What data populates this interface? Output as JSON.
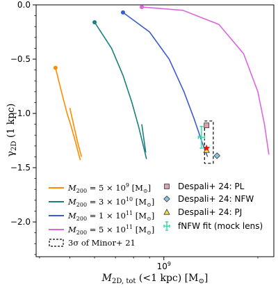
{
  "chart_data": {
    "type": "line",
    "title": "",
    "xlabel": "M_2D,tot (<1 kpc) [M_⊙]",
    "ylabel": "γ_2D (1 kpc)",
    "x_scale": "log",
    "xlim": [
      390000000,
      2250000000
    ],
    "ylim": [
      -2.32,
      0.0
    ],
    "x_ticks": [
      {
        "value": 1000000000,
        "label": "10^9"
      }
    ],
    "y_ticks": [
      {
        "value": 0.0,
        "label": "0.0"
      },
      {
        "value": -0.5,
        "label": "−0.5"
      },
      {
        "value": -1.0,
        "label": "−1.0"
      },
      {
        "value": -1.5,
        "label": "−1.5"
      },
      {
        "value": -2.0,
        "label": "−2.0"
      }
    ],
    "grid": false,
    "legend_placement": "lower-left and lower-right",
    "series": [
      {
        "name": "M_200 = 5×10^9 [M_⊙]",
        "legend_main": "M200 = 5 × 10",
        "legend_exp": "9",
        "legend_unit": "[M☉]",
        "color": "#ff8c00",
        "start_marker": {
          "x": 450000000,
          "y": -0.58
        },
        "x": [
          450000000,
          470000000,
          490000000,
          505000000,
          520000000,
          540000000
        ],
        "y": [
          -0.58,
          -0.8,
          -1.0,
          -1.12,
          -1.25,
          -1.43
        ],
        "extra_segment": {
          "x": [
            500000000,
            528000000,
            545000000
          ],
          "y": [
            -0.95,
            -1.25,
            -1.4
          ]
        }
      },
      {
        "name": "M_200 = 3×10^10 [M_⊙]",
        "legend_main": "M200 = 3 × 10",
        "legend_exp": "10",
        "legend_unit": "[M☉]",
        "color": "#1b7f7f",
        "start_marker": {
          "x": 600000000,
          "y": -0.16
        },
        "x": [
          600000000,
          680000000,
          740000000,
          790000000,
          830000000,
          860000000,
          880000000
        ],
        "y": [
          -0.16,
          -0.4,
          -0.65,
          -0.9,
          -1.12,
          -1.3,
          -1.42
        ],
        "extra_segment": {
          "x": [
            850000000,
            875000000
          ],
          "y": [
            -1.1,
            -1.36
          ]
        }
      },
      {
        "name": "M_200 = 1×10^11 [M_⊙]",
        "legend_main": "M200 = 1 × 10",
        "legend_exp": "11",
        "legend_unit": "[M☉]",
        "color": "#3b5ccc",
        "start_marker": {
          "x": 740000000,
          "y": -0.07
        },
        "x": [
          740000000,
          900000000,
          1040000000,
          1160000000,
          1250000000,
          1320000000,
          1380000000
        ],
        "y": [
          -0.07,
          -0.25,
          -0.5,
          -0.8,
          -1.05,
          -1.25,
          -1.4
        ],
        "extra_segment": null
      },
      {
        "name": "M_200 = 5×10^11 [M_⊙]",
        "legend_main": "M200 = 5 × 10",
        "legend_exp": "11",
        "legend_unit": "[M☉]",
        "color": "#dd66dd",
        "start_marker": {
          "x": 850000000,
          "y": -0.02
        },
        "x": [
          850000000,
          1150000000,
          1500000000,
          1800000000,
          2000000000,
          2100000000,
          2170000000
        ],
        "y": [
          -0.02,
          -0.05,
          -0.18,
          -0.45,
          -0.8,
          -1.1,
          -1.38
        ],
        "extra_segment": null
      }
    ],
    "points": [
      {
        "name": "Despali+ 24: PL",
        "marker": "square",
        "color": "#d9a3b3",
        "x": 1370000000,
        "y": -1.11
      },
      {
        "name": "Despali+ 24: NFW",
        "marker": "diamond",
        "color": "#87c5e6",
        "x": 1480000000,
        "y": -1.39
      },
      {
        "name": "Despali+ 24: PJ",
        "marker": "triangle",
        "color": "#f2e33d",
        "x": 1370000000,
        "y": -1.34
      },
      {
        "name": "fNFW fit (mock lens)",
        "marker": "errorbar",
        "color": "#33e0a0",
        "x": 1320000000,
        "y": -1.22,
        "xerr": 30000000,
        "yerr": 0.1
      }
    ],
    "star": {
      "x": 1370000000,
      "y": -1.32,
      "color": "#ee1111"
    },
    "minor_box": {
      "name": "3σ of Minor+ 21",
      "x0": 1350000000,
      "x1": 1440000000,
      "y0": -1.46,
      "y1": -1.07
    }
  }
}
